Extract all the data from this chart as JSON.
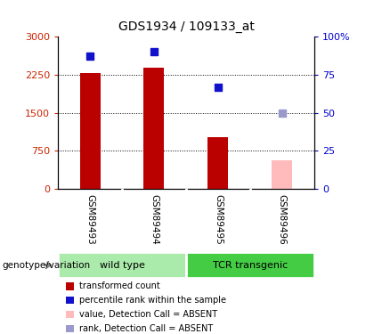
{
  "title": "GDS1934 / 109133_at",
  "samples": [
    "GSM89493",
    "GSM89494",
    "GSM89495",
    "GSM89496"
  ],
  "bar_values": [
    2290,
    2390,
    1020,
    null
  ],
  "absent_bar_values": [
    null,
    null,
    null,
    560
  ],
  "absent_bar_color": "#ffbbbb",
  "dot_pct_present": [
    87,
    90,
    67,
    null
  ],
  "dot_pct_absent": [
    null,
    null,
    null,
    50
  ],
  "dot_color_present": "#1111cc",
  "dot_color_absent": "#9999cc",
  "bar_color": "#bb0000",
  "ylim_left": [
    0,
    3000
  ],
  "ylim_right": [
    0,
    100
  ],
  "yticks_left": [
    0,
    750,
    1500,
    2250,
    3000
  ],
  "ytick_labels_left": [
    "0",
    "750",
    "1500",
    "2250",
    "3000"
  ],
  "yticks_right": [
    0,
    25,
    50,
    75,
    100
  ],
  "ytick_labels_right": [
    "0",
    "25",
    "50",
    "75",
    "100%"
  ],
  "groups": [
    {
      "label": "wild type",
      "cols": [
        0,
        1
      ],
      "color": "#aaeaaa"
    },
    {
      "label": "TCR transgenic",
      "cols": [
        2,
        3
      ],
      "color": "#44cc44"
    }
  ],
  "genotype_label": "genotype/variation",
  "legend_items": [
    {
      "label": "transformed count",
      "color": "#bb0000"
    },
    {
      "label": "percentile rank within the sample",
      "color": "#1111cc"
    },
    {
      "label": "value, Detection Call = ABSENT",
      "color": "#ffbbbb"
    },
    {
      "label": "rank, Detection Call = ABSENT",
      "color": "#9999cc"
    }
  ],
  "bar_width": 0.32,
  "dot_size": 35,
  "background_color": "#ffffff",
  "sample_area_color": "#cccccc",
  "plot_bg_color": "#ffffff"
}
